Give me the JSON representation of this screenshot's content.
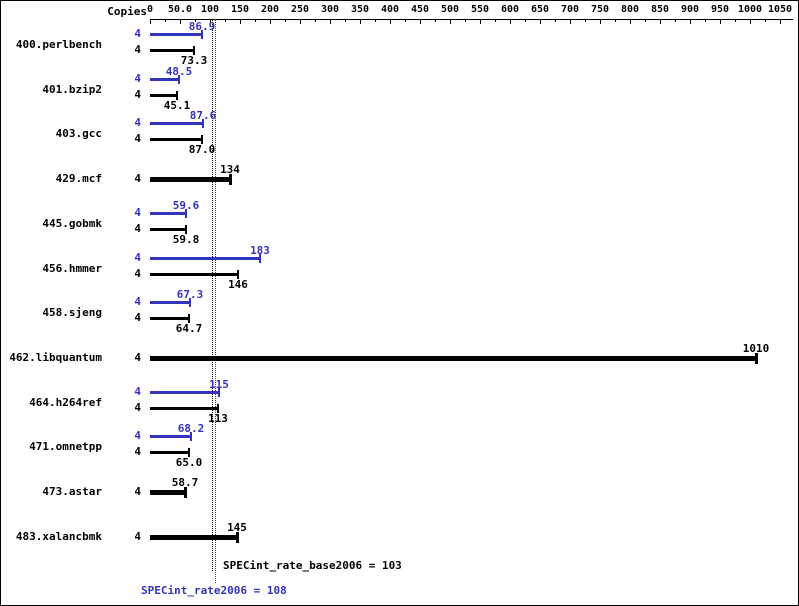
{
  "chart_data": {
    "type": "bar",
    "orientation": "horizontal",
    "copies_header": "Copies",
    "x_axis": {
      "min": 0,
      "max": 1050,
      "major_tick_step": 50,
      "minor_tick_step": 25,
      "tick_labels": [
        "0",
        "50.0",
        "100",
        "150",
        "200",
        "250",
        "300",
        "350",
        "400",
        "450",
        "500",
        "550",
        "600",
        "650",
        "700",
        "750",
        "800",
        "850",
        "900",
        "950",
        "1000",
        "1050"
      ]
    },
    "series_colors": {
      "peak": "#3333bb",
      "base": "#000000"
    },
    "benchmarks": [
      {
        "name": "400.perlbench",
        "copies": 4,
        "peak": 86.9,
        "peak_label": "86.9",
        "base": 73.3,
        "base_label": "73.3"
      },
      {
        "name": "401.bzip2",
        "copies": 4,
        "peak": 48.5,
        "peak_label": "48.5",
        "base": 45.1,
        "base_label": "45.1"
      },
      {
        "name": "403.gcc",
        "copies": 4,
        "peak": 87.6,
        "peak_label": "87.6",
        "base": 87.0,
        "base_label": "87.0"
      },
      {
        "name": "429.mcf",
        "copies": 4,
        "single": 134,
        "single_label": "134"
      },
      {
        "name": "445.gobmk",
        "copies": 4,
        "peak": 59.6,
        "peak_label": "59.6",
        "base": 59.8,
        "base_label": "59.8"
      },
      {
        "name": "456.hmmer",
        "copies": 4,
        "peak": 183,
        "peak_label": "183",
        "base": 146,
        "base_label": "146"
      },
      {
        "name": "458.sjeng",
        "copies": 4,
        "peak": 67.3,
        "peak_label": "67.3",
        "base": 64.7,
        "base_label": "64.7"
      },
      {
        "name": "462.libquantum",
        "copies": 4,
        "single": 1010,
        "single_label": "1010"
      },
      {
        "name": "464.h264ref",
        "copies": 4,
        "peak": 115,
        "peak_label": "115",
        "base": 113,
        "base_label": "113"
      },
      {
        "name": "471.omnetpp",
        "copies": 4,
        "peak": 68.2,
        "peak_label": "68.2",
        "base": 65.0,
        "base_label": "65.0"
      },
      {
        "name": "473.astar",
        "copies": 4,
        "single": 58.7,
        "single_label": "58.7"
      },
      {
        "name": "483.xalancbmk",
        "copies": 4,
        "single": 145,
        "single_label": "145"
      }
    ],
    "reference_lines": [
      {
        "label": "SPECint_rate_base2006 = 103",
        "value": 103,
        "color": "#000000"
      },
      {
        "label": "SPECint_rate2006 = 108",
        "value": 108,
        "color": "#3333bb"
      }
    ]
  }
}
